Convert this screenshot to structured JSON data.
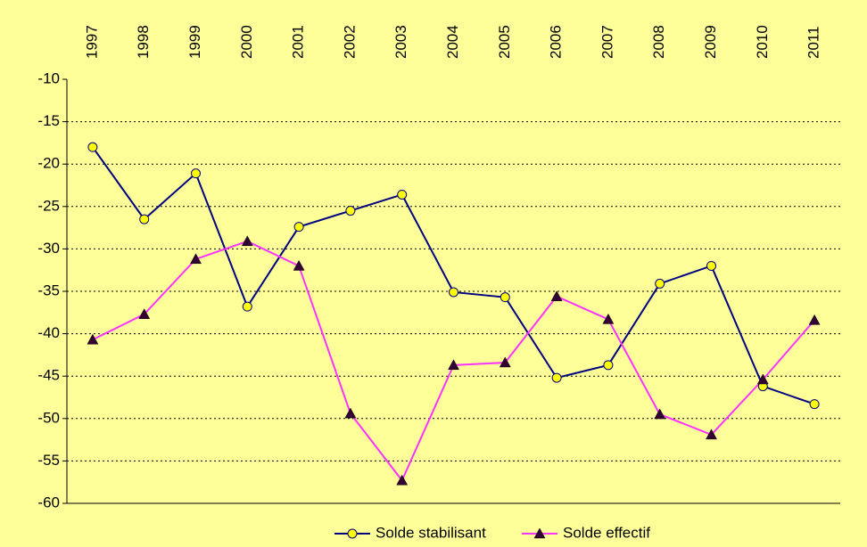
{
  "chart_data": {
    "type": "line",
    "categories": [
      "1997",
      "1998",
      "1999",
      "2000",
      "2001",
      "2002",
      "2003",
      "2004",
      "2005",
      "2006",
      "2007",
      "2008",
      "2009",
      "2010",
      "2011"
    ],
    "series": [
      {
        "name": "Solde stabilisant",
        "color": "#000080",
        "marker": "circle",
        "marker_color": "#ffff00",
        "values": [
          -18.0,
          -26.5,
          -21.1,
          -36.8,
          -27.4,
          -25.5,
          -23.6,
          -35.1,
          -35.7,
          -45.2,
          -43.7,
          -34.1,
          -32.0,
          -46.2,
          -48.3
        ]
      },
      {
        "name": "Solde effectif",
        "color": "#ff33ff",
        "marker": "triangle",
        "marker_color": "#330033",
        "values": [
          -40.7,
          -37.7,
          -31.2,
          -29.1,
          -32.0,
          -49.4,
          -57.3,
          -43.7,
          -43.4,
          -35.6,
          -38.3,
          -49.5,
          -51.9,
          -45.4,
          -38.4
        ]
      }
    ],
    "ylim": [
      -60,
      -10
    ],
    "yticks": [
      -10,
      -15,
      -20,
      -25,
      -30,
      -35,
      -40,
      -45,
      -50,
      -55,
      -60
    ],
    "grid": true,
    "legend": "bottom"
  }
}
